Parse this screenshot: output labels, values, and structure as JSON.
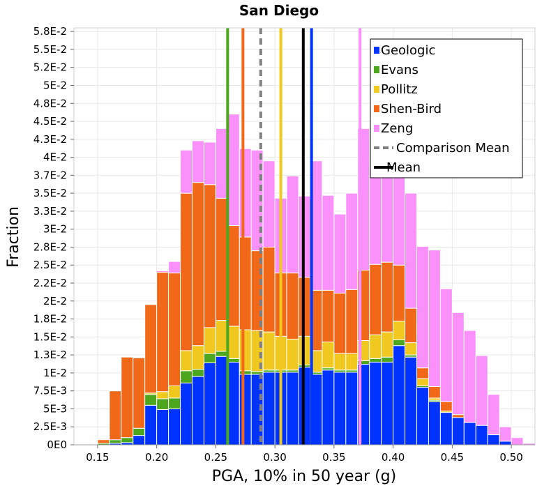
{
  "chart_data": {
    "type": "bar",
    "subtype": "stacked-histogram",
    "title": "San Diego",
    "xlabel": "PGA, 10% in 50 year (g)",
    "ylabel": "Fraction",
    "xlim": [
      0.13,
      0.52
    ],
    "ylim": [
      0,
      0.058
    ],
    "bin_width": 0.01,
    "x_ticks": [
      {
        "value": 0.15,
        "label": "0.15"
      },
      {
        "value": 0.2,
        "label": "0.20"
      },
      {
        "value": 0.25,
        "label": "0.25"
      },
      {
        "value": 0.3,
        "label": "0.30"
      },
      {
        "value": 0.35,
        "label": "0.35"
      },
      {
        "value": 0.4,
        "label": "0.40"
      },
      {
        "value": 0.45,
        "label": "0.45"
      },
      {
        "value": 0.5,
        "label": "0.50"
      }
    ],
    "y_ticks": [
      {
        "value": 0,
        "label": "0E0"
      },
      {
        "value": 0.0025,
        "label": "2.5E-3"
      },
      {
        "value": 0.005,
        "label": "5E-3"
      },
      {
        "value": 0.0075,
        "label": "7.5E-3"
      },
      {
        "value": 0.01,
        "label": "1E-2"
      },
      {
        "value": 0.0125,
        "label": "1.3E-2"
      },
      {
        "value": 0.015,
        "label": "1.5E-2"
      },
      {
        "value": 0.0175,
        "label": "1.8E-2"
      },
      {
        "value": 0.02,
        "label": "2E-2"
      },
      {
        "value": 0.0225,
        "label": "2.2E-2"
      },
      {
        "value": 0.025,
        "label": "2.5E-2"
      },
      {
        "value": 0.0275,
        "label": "2.8E-2"
      },
      {
        "value": 0.03,
        "label": "3E-2"
      },
      {
        "value": 0.0325,
        "label": "3.3E-2"
      },
      {
        "value": 0.035,
        "label": "3.5E-2"
      },
      {
        "value": 0.0375,
        "label": "3.7E-2"
      },
      {
        "value": 0.04,
        "label": "4E-2"
      },
      {
        "value": 0.0425,
        "label": "4.3E-2"
      },
      {
        "value": 0.045,
        "label": "4.5E-2"
      },
      {
        "value": 0.0475,
        "label": "4.8E-2"
      },
      {
        "value": 0.05,
        "label": "5E-2"
      },
      {
        "value": 0.0525,
        "label": "5.2E-2"
      },
      {
        "value": 0.055,
        "label": "5.5E-2"
      },
      {
        "value": 0.0575,
        "label": "5.8E-2"
      }
    ],
    "bins": [
      0.14,
      0.15,
      0.16,
      0.17,
      0.18,
      0.19,
      0.2,
      0.21,
      0.22,
      0.23,
      0.24,
      0.25,
      0.26,
      0.27,
      0.28,
      0.29,
      0.3,
      0.31,
      0.32,
      0.33,
      0.34,
      0.35,
      0.36,
      0.37,
      0.38,
      0.39,
      0.4,
      0.41,
      0.42,
      0.43,
      0.44,
      0.45,
      0.46,
      0.47,
      0.48,
      0.49,
      0.5,
      0.51
    ],
    "series": [
      {
        "name": "Geologic",
        "color": "#0033ff",
        "values": [
          0,
          0,
          0.0002,
          0.0003,
          0.0013,
          0.0055,
          0.0049,
          0.005,
          0.0086,
          0.0095,
          0.0114,
          0.0123,
          0.0115,
          0.0098,
          0.0098,
          0.0101,
          0.0101,
          0.0101,
          0.0108,
          0.0098,
          0.0104,
          0.0101,
          0.0101,
          0.0112,
          0.0115,
          0.0115,
          0.0138,
          0.0122,
          0.008,
          0.006,
          0.0045,
          0.0038,
          0.0031,
          0.0027,
          0.0014,
          0.0005,
          0,
          0
        ]
      },
      {
        "name": "Evans",
        "color": "#4ca71f",
        "values": [
          0,
          0.0002,
          0.0005,
          0.0007,
          0.001,
          0.0015,
          0.0015,
          0.0015,
          0.0017,
          0.001,
          0.0013,
          0.0007,
          0.0005,
          0.0005,
          0.0004,
          0.0003,
          0.0003,
          0.0003,
          0.0003,
          0.0003,
          0.0003,
          0.0003,
          0.0003,
          0.0005,
          0.0005,
          0.0007,
          0.0008,
          0.0003,
          0.0002,
          0.0002,
          0,
          0,
          0,
          0,
          0,
          0,
          0,
          0
        ]
      },
      {
        "name": "Pollitz",
        "color": "#f0c820",
        "values": [
          0,
          0,
          0,
          0,
          0,
          0.0002,
          0.001,
          0.0017,
          0.0028,
          0.0033,
          0.0036,
          0.0043,
          0.0045,
          0.0057,
          0.0057,
          0.0053,
          0.0047,
          0.0043,
          0.004,
          0.003,
          0.0036,
          0.0023,
          0.0023,
          0.0028,
          0.0033,
          0.0035,
          0.0026,
          0.0017,
          0.001,
          0.0003,
          0.0002,
          0,
          0,
          0,
          0,
          0,
          0,
          0
        ]
      },
      {
        "name": "Shen-Bird",
        "color": "#f06818",
        "values": [
          0,
          0.0005,
          0.0068,
          0.0112,
          0.0098,
          0.0123,
          0.0166,
          0.0157,
          0.0219,
          0.0227,
          0.0199,
          0.017,
          0.014,
          0.0129,
          0.0111,
          0.0118,
          0.0088,
          0.0092,
          0.0082,
          0.0084,
          0.0072,
          0.0084,
          0.0089,
          0.0098,
          0.0098,
          0.0097,
          0.0078,
          0.0048,
          0.0015,
          0.0016,
          0.0013,
          0.0004,
          0,
          0,
          0,
          0,
          0,
          0
        ]
      },
      {
        "name": "Zeng",
        "color": "#fa90fa",
        "values": [
          0,
          0,
          0,
          0,
          0,
          0,
          0.0002,
          0.0016,
          0.006,
          0.0058,
          0.0059,
          0.0097,
          0.0155,
          0.0123,
          0.014,
          0.012,
          0.0104,
          0.0135,
          0.0113,
          0.018,
          0.0132,
          0.011,
          0.0134,
          0.0197,
          0.0133,
          0.0145,
          0.0153,
          0.016,
          0.0169,
          0.019,
          0.0157,
          0.0142,
          0.0128,
          0.0097,
          0.0056,
          0.002,
          0.001,
          0.0002
        ]
      }
    ],
    "vertical_lines": [
      {
        "name": "Evans",
        "x": 0.26,
        "color": "#4ca71f",
        "style": "solid"
      },
      {
        "name": "Shen-Bird",
        "x": 0.273,
        "color": "#f06818",
        "style": "solid"
      },
      {
        "name": "Comparison Mean",
        "x": 0.288,
        "color": "#808080",
        "style": "dashed"
      },
      {
        "name": "Pollitz",
        "x": 0.305,
        "color": "#f0c820",
        "style": "solid"
      },
      {
        "name": "Mean",
        "x": 0.324,
        "color": "#000000",
        "style": "solid"
      },
      {
        "name": "Geologic",
        "x": 0.331,
        "color": "#0033ff",
        "style": "solid"
      },
      {
        "name": "Zeng",
        "x": 0.372,
        "color": "#fa90fa",
        "style": "solid"
      }
    ],
    "legend": {
      "placement": "top-right",
      "entries": [
        {
          "label": "Geologic",
          "color": "#0033ff",
          "kind": "box"
        },
        {
          "label": "Evans",
          "color": "#4ca71f",
          "kind": "box"
        },
        {
          "label": "Pollitz",
          "color": "#f0c820",
          "kind": "box"
        },
        {
          "label": "Shen-Bird",
          "color": "#f06818",
          "kind": "box"
        },
        {
          "label": "Zeng",
          "color": "#fa90fa",
          "kind": "box"
        },
        {
          "label": "Comparison Mean",
          "color": "#808080",
          "kind": "dashed-line"
        },
        {
          "label": "Mean",
          "color": "#000000",
          "kind": "line"
        }
      ]
    },
    "grid": true
  }
}
